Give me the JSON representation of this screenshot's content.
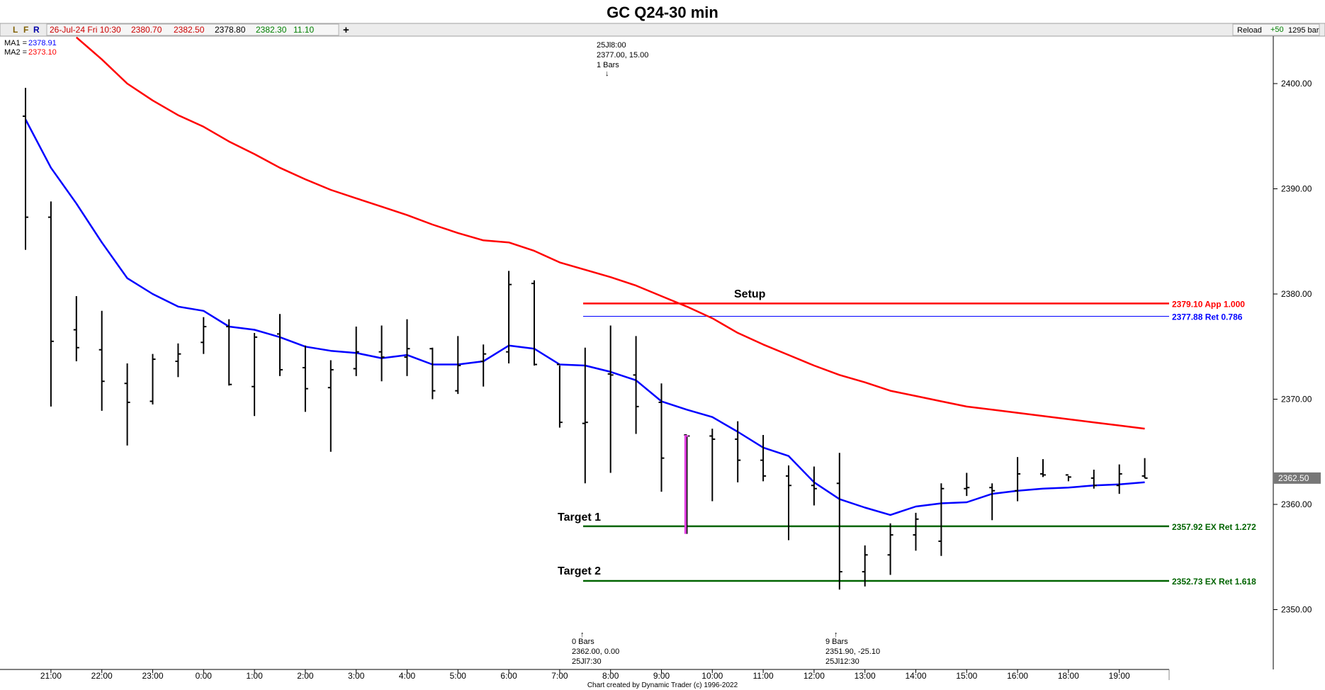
{
  "header": {
    "title": "GC Q24-30 min",
    "buttons": {
      "l": "L",
      "f": "F",
      "r": "R"
    },
    "quote": {
      "date": "26-Jul-24 Fri 10:30",
      "open": "2380.70",
      "high": "2382.50",
      "low": "2378.80",
      "close": "2382.30",
      "change": "11.10"
    },
    "plus_icon": "+",
    "reload_label": "Reload",
    "reload_delta": "+50",
    "bar_count": "1295 bar"
  },
  "legend": {
    "ma1_label": "MA1 =",
    "ma1_value": "2378.91",
    "ma2_label": "MA2 =",
    "ma2_value": "2373.10"
  },
  "colors": {
    "price_bars": "#000000",
    "ma1": "#0000ff",
    "ma2": "#ff0000",
    "setup_line": "#ff0000",
    "ret_line": "#0000ff",
    "target_lines": "#006400",
    "highlight_bar": "#e040e0",
    "quote_date": "#cc0000",
    "quote_open": "#cc0000",
    "quote_high": "#cc0000",
    "quote_low": "#000000",
    "quote_close": "#008000",
    "quote_change": "#008000"
  },
  "annotations": {
    "top": {
      "l1": "25Jl8:00",
      "l2": "2377.00, 15.00",
      "l3": "1 Bars",
      "arrow": "↓"
    },
    "bottom_left": {
      "arrow": "↑",
      "l1": "0 Bars",
      "l2": "2362.00, 0.00",
      "l3": "25Jl7:30"
    },
    "bottom_mid": {
      "arrow": "↑",
      "l1": "9 Bars",
      "l2": "2351.90, -25.10",
      "l3": "25Jl12:30"
    },
    "setup": "Setup",
    "target1": "Target 1",
    "target2": "Target 2",
    "footer": "Chart created by Dynamic Trader  (c) 1996-2022"
  },
  "chart_data": {
    "type": "ohlc",
    "title": "GC Q24-30 min",
    "ylim": [
      2345,
      2405
    ],
    "y_ticks": [
      {
        "value": 2400,
        "label": "2400.00"
      },
      {
        "value": 2390,
        "label": "2390.00"
      },
      {
        "value": 2380,
        "label": "2380.00"
      },
      {
        "value": 2370,
        "label": "2370.00"
      },
      {
        "value": 2360,
        "label": "2360.00"
      },
      {
        "value": 2350,
        "label": "2350.00"
      }
    ],
    "x_ticks": [
      {
        "bar": 1,
        "label": "21:00"
      },
      {
        "bar": 3,
        "label": "22:00"
      },
      {
        "bar": 5,
        "label": "23:00"
      },
      {
        "bar": 7,
        "label": "0:00"
      },
      {
        "bar": 9,
        "label": "1:00"
      },
      {
        "bar": 11,
        "label": "2:00"
      },
      {
        "bar": 13,
        "label": "3:00"
      },
      {
        "bar": 15,
        "label": "4:00"
      },
      {
        "bar": 17,
        "label": "5:00"
      },
      {
        "bar": 19,
        "label": "6:00"
      },
      {
        "bar": 21,
        "label": "7:00"
      },
      {
        "bar": 23,
        "label": "8:00"
      },
      {
        "bar": 25,
        "label": "9:00"
      },
      {
        "bar": 27,
        "label": "10:00"
      },
      {
        "bar": 29,
        "label": "11:00"
      },
      {
        "bar": 31,
        "label": "12:00"
      },
      {
        "bar": 33,
        "label": "13:00"
      },
      {
        "bar": 35,
        "label": "14:00"
      },
      {
        "bar": 37,
        "label": "15:00"
      },
      {
        "bar": 39,
        "label": "16:00"
      },
      {
        "bar": 41,
        "label": "18:00"
      },
      {
        "bar": 43,
        "label": "19:00"
      }
    ],
    "bars": [
      {
        "o": 2396.9,
        "h": 2399.6,
        "l": 2384.2,
        "c": 2387.3
      },
      {
        "o": 2387.3,
        "h": 2388.8,
        "l": 2369.3,
        "c": 2375.5
      },
      {
        "o": 2376.6,
        "h": 2379.8,
        "l": 2373.6,
        "c": 2374.9
      },
      {
        "o": 2374.7,
        "h": 2378.4,
        "l": 2368.9,
        "c": 2371.7
      },
      {
        "o": 2371.5,
        "h": 2373.4,
        "l": 2365.6,
        "c": 2369.7
      },
      {
        "o": 2369.8,
        "h": 2374.3,
        "l": 2369.5,
        "c": 2373.8
      },
      {
        "o": 2373.6,
        "h": 2375.3,
        "l": 2372.1,
        "c": 2374.3
      },
      {
        "o": 2375.4,
        "h": 2377.8,
        "l": 2374.3,
        "c": 2376.9
      },
      {
        "o": 2376.9,
        "h": 2377.6,
        "l": 2371.3,
        "c": 2371.4
      },
      {
        "o": 2371.2,
        "h": 2376.3,
        "l": 2368.4,
        "c": 2375.9
      },
      {
        "o": 2376.2,
        "h": 2378.1,
        "l": 2372.2,
        "c": 2372.8
      },
      {
        "o": 2373.0,
        "h": 2375.1,
        "l": 2368.8,
        "c": 2371.0
      },
      {
        "o": 2371.1,
        "h": 2373.7,
        "l": 2365.0,
        "c": 2372.8
      },
      {
        "o": 2372.9,
        "h": 2376.9,
        "l": 2372.2,
        "c": 2374.5
      },
      {
        "o": 2374.5,
        "h": 2377.0,
        "l": 2371.7,
        "c": 2374.0
      },
      {
        "o": 2374.0,
        "h": 2377.6,
        "l": 2372.2,
        "c": 2374.8
      },
      {
        "o": 2374.8,
        "h": 2374.9,
        "l": 2370.0,
        "c": 2370.8
      },
      {
        "o": 2370.8,
        "h": 2376.0,
        "l": 2370.5,
        "c": 2373.2
      },
      {
        "o": 2373.6,
        "h": 2375.2,
        "l": 2371.2,
        "c": 2374.3
      },
      {
        "o": 2374.5,
        "h": 2382.2,
        "l": 2373.4,
        "c": 2380.9
      },
      {
        "o": 2381.0,
        "h": 2381.3,
        "l": 2373.2,
        "c": 2373.3
      },
      {
        "o": 2373.3,
        "h": 2373.2,
        "l": 2367.3,
        "c": 2367.8
      },
      {
        "o": 2367.7,
        "h": 2374.9,
        "l": 2362.0,
        "c": 2367.8
      },
      {
        "o": 2372.4,
        "h": 2377.0,
        "l": 2363.0,
        "c": 2372.3
      },
      {
        "o": 2372.3,
        "h": 2376.0,
        "l": 2366.7,
        "c": 2369.3
      },
      {
        "o": 2369.7,
        "h": 2371.5,
        "l": 2361.2,
        "c": 2364.4
      },
      {
        "o": 2366.6,
        "h": 2366.5,
        "l": 2357.2,
        "c": 2366.5
      },
      {
        "o": 2366.5,
        "h": 2367.2,
        "l": 2360.3,
        "c": 2366.2
      },
      {
        "o": 2366.2,
        "h": 2367.9,
        "l": 2362.1,
        "c": 2364.2
      },
      {
        "o": 2364.2,
        "h": 2366.6,
        "l": 2362.2,
        "c": 2362.7
      },
      {
        "o": 2362.7,
        "h": 2363.7,
        "l": 2356.6,
        "c": 2361.8
      },
      {
        "o": 2361.8,
        "h": 2363.6,
        "l": 2359.9,
        "c": 2361.5
      },
      {
        "o": 2362.0,
        "h": 2364.9,
        "l": 2351.9,
        "c": 2353.6
      },
      {
        "o": 2353.6,
        "h": 2356.1,
        "l": 2352.2,
        "c": 2355.2
      },
      {
        "o": 2355.2,
        "h": 2358.2,
        "l": 2353.3,
        "c": 2357.1
      },
      {
        "o": 2357.1,
        "h": 2359.2,
        "l": 2355.6,
        "c": 2358.6
      },
      {
        "o": 2356.5,
        "h": 2362.0,
        "l": 2355.1,
        "c": 2361.5
      },
      {
        "o": 2361.5,
        "h": 2363.0,
        "l": 2360.8,
        "c": 2361.6
      },
      {
        "o": 2361.6,
        "h": 2362.0,
        "l": 2358.5,
        "c": 2361.3
      },
      {
        "o": 2361.3,
        "h": 2364.5,
        "l": 2360.3,
        "c": 2362.9
      },
      {
        "o": 2362.9,
        "h": 2364.3,
        "l": 2362.6,
        "c": 2362.8
      },
      {
        "o": 2362.8,
        "h": 2362.7,
        "l": 2362.2,
        "c": 2362.6
      },
      {
        "o": 2362.5,
        "h": 2363.3,
        "l": 2361.5,
        "c": 2361.8
      },
      {
        "o": 2361.8,
        "h": 2363.8,
        "l": 2361.0,
        "c": 2362.9
      },
      {
        "o": 2362.7,
        "h": 2364.4,
        "l": 2362.5,
        "c": 2362.5
      }
    ],
    "highlight_bar": {
      "bar": 26,
      "high": 2366.6,
      "low": 2357.2,
      "close": 2366.5
    },
    "ma1": [
      2396.6,
      2392.0,
      2388.6,
      2384.9,
      2381.5,
      2380.0,
      2378.8,
      2378.4,
      2376.9,
      2376.6,
      2375.9,
      2375.0,
      2374.6,
      2374.4,
      2373.9,
      2374.2,
      2373.3,
      2373.3,
      2373.6,
      2375.1,
      2374.8,
      2373.3,
      2373.2,
      2372.6,
      2371.8,
      2369.8,
      2369.0,
      2368.3,
      2366.9,
      2365.4,
      2364.6,
      2362.1,
      2360.5,
      2359.7,
      2359.0,
      2359.8,
      2360.1,
      2360.2,
      2361.0,
      2361.3,
      2361.5,
      2361.6,
      2361.8,
      2361.9,
      2362.1
    ],
    "ma2": [
      null,
      null,
      2404.4,
      2402.3,
      2400.0,
      2398.4,
      2397.0,
      2395.9,
      2394.5,
      2393.3,
      2392.0,
      2390.9,
      2389.9,
      2389.1,
      2388.3,
      2387.5,
      2386.6,
      2385.8,
      2385.1,
      2384.9,
      2384.1,
      2383.0,
      2382.3,
      2381.6,
      2380.8,
      2379.8,
      2378.8,
      2377.7,
      2376.3,
      2375.2,
      2374.2,
      2373.2,
      2372.3,
      2371.6,
      2370.8,
      2370.3,
      2369.8,
      2369.3,
      2369.0,
      2368.7,
      2368.4,
      2368.1,
      2367.8,
      2367.5,
      2367.2
    ],
    "last_price": {
      "value": 2362.5,
      "label": "2362.50"
    },
    "levels": [
      {
        "value": 2379.1,
        "label": "2379.10 App 1.000",
        "color": "#ff0000",
        "width": 2.5
      },
      {
        "value": 2377.88,
        "label": "2377.88 Ret 0.786",
        "color": "#0000ff",
        "width": 1
      },
      {
        "value": 2357.92,
        "label": "2357.92 EX Ret 1.272",
        "color": "#006400",
        "width": 2.5
      },
      {
        "value": 2352.73,
        "label": "2352.73 EX Ret 1.618",
        "color": "#006400",
        "width": 2.5
      }
    ]
  }
}
